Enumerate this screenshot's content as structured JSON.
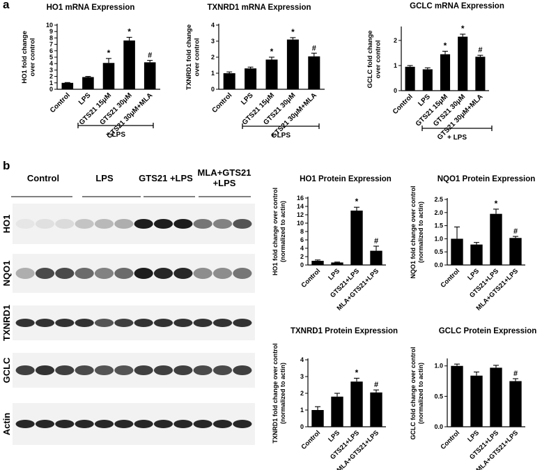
{
  "panels": {
    "a": "a",
    "b": "b"
  },
  "blot": {
    "groups": [
      {
        "label": "Control"
      },
      {
        "label": "LPS"
      },
      {
        "label": "GTS21 +LPS"
      },
      {
        "label": "MLA+GTS21\n+LPS"
      }
    ],
    "rows": [
      {
        "label": "HO1",
        "intensity": [
          0.05,
          0.08,
          0.1,
          0.2,
          0.25,
          0.3,
          0.95,
          0.95,
          0.95,
          0.55,
          0.5,
          0.7
        ]
      },
      {
        "label": "NQO1",
        "intensity": [
          0.3,
          0.75,
          0.75,
          0.6,
          0.5,
          0.6,
          0.95,
          0.9,
          0.9,
          0.45,
          0.45,
          0.55
        ]
      },
      {
        "label": "TXNRD1",
        "intensity": [
          0.85,
          0.85,
          0.85,
          0.85,
          0.7,
          0.8,
          0.85,
          0.85,
          0.85,
          0.85,
          0.85,
          0.85
        ]
      },
      {
        "label": "GCLC",
        "intensity": [
          0.8,
          0.85,
          0.8,
          0.75,
          0.7,
          0.7,
          0.8,
          0.8,
          0.8,
          0.75,
          0.75,
          0.8
        ]
      },
      {
        "label": "Actin",
        "intensity": [
          0.9,
          0.9,
          0.9,
          0.9,
          0.9,
          0.9,
          0.9,
          0.9,
          0.9,
          0.9,
          0.9,
          0.9
        ]
      }
    ]
  },
  "chart_data": [
    {
      "id": "ho1-mrna",
      "type": "bar",
      "title": "HO1 mRNA Expression",
      "ylabel": "HO1 fold change\nover control",
      "categories": [
        "Control",
        "LPS",
        "GTS21 15μM",
        "GTS21 30μM",
        "GTS21 30μM+MLA"
      ],
      "values": [
        1.0,
        1.9,
        4.1,
        7.6,
        4.2
      ],
      "errors": [
        0.05,
        0.1,
        0.7,
        0.5,
        0.3
      ],
      "annotations": [
        "",
        "",
        "*",
        "*",
        "#"
      ],
      "ylim": [
        0,
        10
      ],
      "yticks": [
        "0",
        "1",
        "2",
        "3",
        "4",
        "5",
        "6",
        "7",
        "8",
        "9",
        "10"
      ],
      "bracket_label": "+ LPS"
    },
    {
      "id": "txnrd1-mrna",
      "type": "bar",
      "title": "TXNRD1 mRNA Expression",
      "ylabel": "TXNRD1 fold change\nover control",
      "categories": [
        "Control",
        "LPS",
        "GTS21 15μM",
        "GTS21 30μM",
        "GTS21 30μM+MLA"
      ],
      "values": [
        1.0,
        1.3,
        1.85,
        3.1,
        2.05
      ],
      "errors": [
        0.08,
        0.08,
        0.15,
        0.12,
        0.2
      ],
      "annotations": [
        "",
        "",
        "*",
        "*",
        "#"
      ],
      "ylim": [
        0,
        4
      ],
      "yticks": [
        "0",
        "1",
        "2",
        "3",
        "4"
      ],
      "bracket_label": "+ LPS"
    },
    {
      "id": "gclc-mrna",
      "type": "bar",
      "title": "GCLC mRNA Expression",
      "ylabel": "GCLC fold change\nover control",
      "categories": [
        "Control",
        "LPS",
        "GTS21 15μM",
        "GTS21 30μM",
        "GTS21 30μM+MLA"
      ],
      "values": [
        0.95,
        0.85,
        1.45,
        2.15,
        1.35
      ],
      "errors": [
        0.05,
        0.06,
        0.12,
        0.1,
        0.06
      ],
      "annotations": [
        "",
        "",
        "*",
        "*",
        "#"
      ],
      "ylim": [
        0,
        2.5
      ],
      "yticks": [
        "0",
        "1",
        "2"
      ],
      "tickvals": [
        0,
        1,
        2
      ],
      "bracket_label": "+ LPS"
    },
    {
      "id": "ho1-protein",
      "type": "bar",
      "title": "HO1 Protein Expression",
      "ylabel": "HO1 fold change over control\n(normalized to actin)",
      "categories": [
        "Control",
        "LPS",
        "GTS21+LPS",
        "MLA+GTS21+LPS"
      ],
      "values": [
        1.0,
        0.6,
        13.0,
        3.4
      ],
      "errors": [
        0.2,
        0.1,
        0.8,
        1.1
      ],
      "annotations": [
        "",
        "",
        "*",
        "#"
      ],
      "ylim": [
        0,
        16
      ],
      "yticks": [
        "0",
        "2",
        "4",
        "6",
        "8",
        "10",
        "12",
        "14",
        "16"
      ]
    },
    {
      "id": "nqo1-protein",
      "type": "bar",
      "title": "NQO1 Protein Expression",
      "ylabel": "NQO1 fold change over control\n(normalized to actin)",
      "categories": [
        "Control",
        "LPS",
        "GTS21+LPS",
        "MLA+GTS21+LPS"
      ],
      "values": [
        1.0,
        0.78,
        1.95,
        1.03
      ],
      "errors": [
        0.45,
        0.08,
        0.18,
        0.06
      ],
      "annotations": [
        "",
        "",
        "*",
        "#"
      ],
      "ylim": [
        0,
        2.5
      ],
      "yticks": [
        "0.0",
        "0.5",
        "1.0",
        "1.5",
        "2.0",
        "2.5"
      ]
    },
    {
      "id": "txnrd1-protein",
      "type": "bar",
      "title": "TXNRD1 Protein Expression",
      "ylabel": "TXNRD1 fold change over control\n(normalized to actin)",
      "categories": [
        "Control",
        "LPS",
        "GTS21+LPS",
        "MLA+GTS21+LPS"
      ],
      "values": [
        1.0,
        1.8,
        2.7,
        2.05
      ],
      "errors": [
        0.2,
        0.2,
        0.2,
        0.15
      ],
      "annotations": [
        "",
        "",
        "*",
        "#"
      ],
      "ylim": [
        0,
        4
      ],
      "yticks": [
        "0",
        "1",
        "2",
        "3",
        "4"
      ]
    },
    {
      "id": "gclc-protein",
      "type": "bar",
      "title": "GCLC Protein Expression",
      "ylabel": "GCLC fold change over control\n(normalized to actin)",
      "categories": [
        "Control",
        "LPS",
        "GTS21+LPS",
        "MLA+GTS21+LPS"
      ],
      "values": [
        1.0,
        0.84,
        0.97,
        0.75
      ],
      "errors": [
        0.03,
        0.06,
        0.04,
        0.04
      ],
      "annotations": [
        "",
        "",
        "",
        "#"
      ],
      "ylim": [
        0,
        1.1
      ],
      "yticks": [
        "0.0",
        "0.5",
        "1.0"
      ],
      "tickvals": [
        0,
        0.5,
        1.0
      ]
    }
  ]
}
